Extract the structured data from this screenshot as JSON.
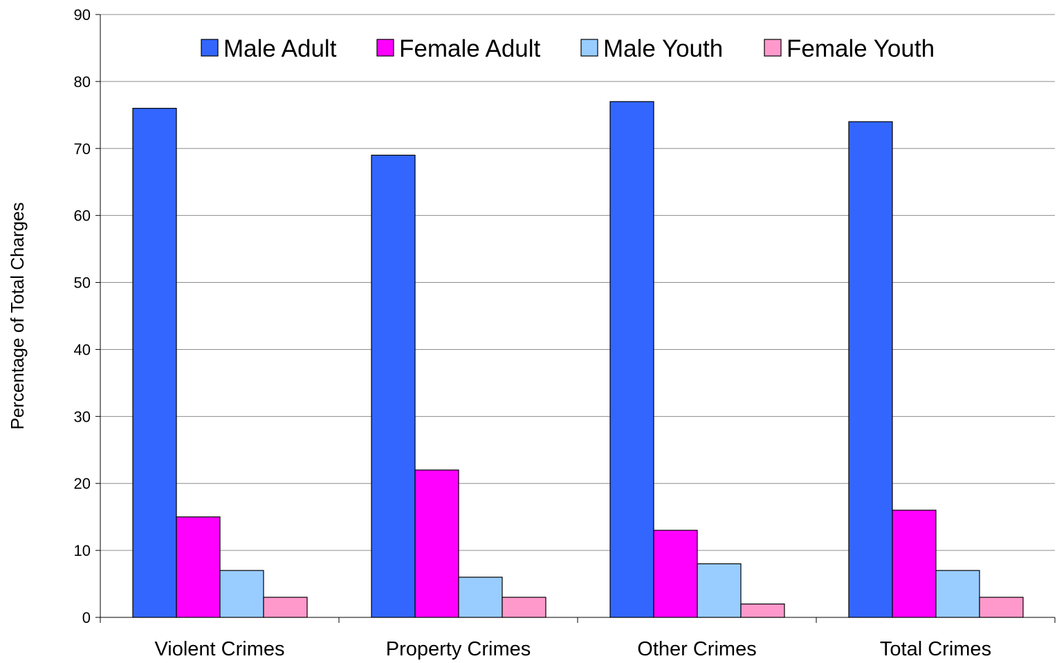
{
  "chart_data": {
    "type": "bar",
    "title": "",
    "xlabel": "",
    "ylabel": "Percentage of Total Charges",
    "ylim": [
      0,
      90
    ],
    "yticks": [
      0,
      10,
      20,
      30,
      40,
      50,
      60,
      70,
      80,
      90
    ],
    "grid": true,
    "legend_position": "top",
    "categories": [
      "Violent Crimes",
      "Property Crimes",
      "Other Crimes",
      "Total Crimes"
    ],
    "series": [
      {
        "name": "Male Adult",
        "color": "#3366ff",
        "values": [
          76,
          69,
          77,
          74
        ]
      },
      {
        "name": "Female Adult",
        "color": "#ff00ff",
        "values": [
          15,
          22,
          13,
          16
        ]
      },
      {
        "name": "Male Youth",
        "color": "#99ccff",
        "values": [
          7,
          6,
          8,
          7
        ]
      },
      {
        "name": "Female Youth",
        "color": "#ff99cc",
        "values": [
          3,
          3,
          2,
          3
        ]
      }
    ]
  }
}
